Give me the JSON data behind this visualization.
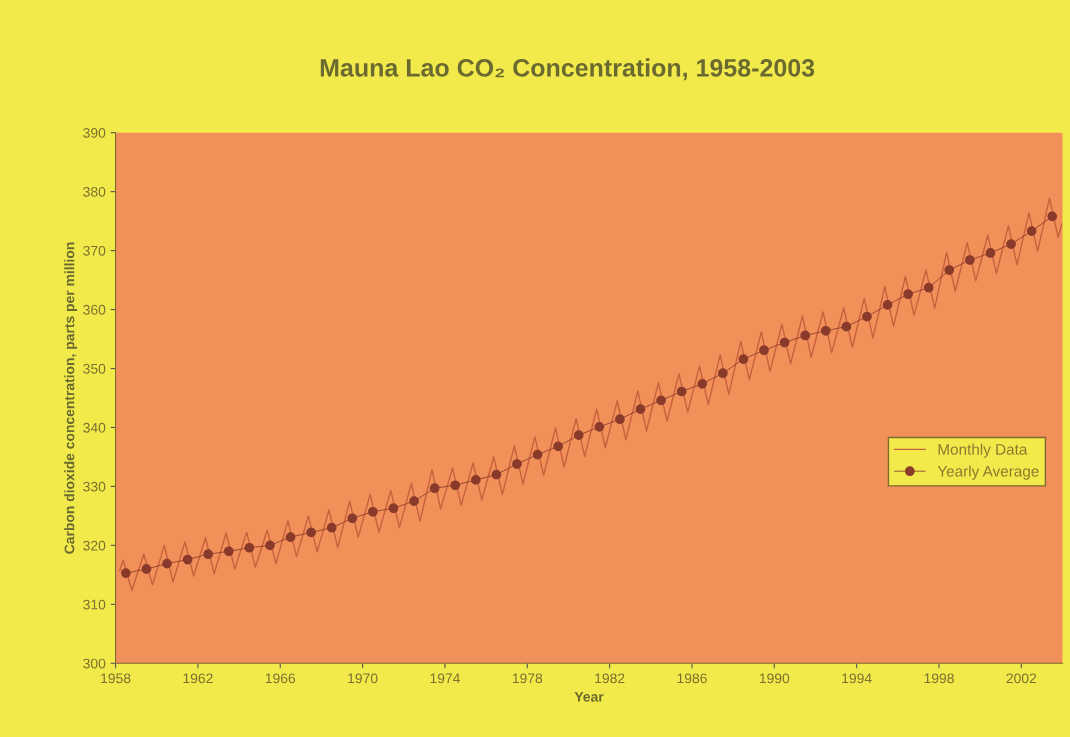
{
  "chart_data": {
    "type": "line",
    "title": "Mauna Lao CO₂ Concentration, 1958-2003",
    "xlabel": "Year",
    "ylabel": "Carbon dioxide concentration, parts per million",
    "xlim": [
      1958,
      2004
    ],
    "xticks": [
      1958,
      1962,
      1966,
      1970,
      1974,
      1978,
      1982,
      1986,
      1990,
      1994,
      1998,
      2002
    ],
    "ylim": [
      300,
      390
    ],
    "yticks": [
      300,
      310,
      320,
      330,
      340,
      350,
      360,
      370,
      380,
      390
    ],
    "grid": false,
    "legend": "right",
    "series": [
      {
        "name": "Monthly Data",
        "color": "#c8603c",
        "marker": "none",
        "line_style": "solid",
        "x": [
          1958.2,
          1958.37,
          1958.79,
          1959.37,
          1959.79,
          1960.37,
          1960.79,
          1961.37,
          1961.79,
          1962.37,
          1962.79,
          1963.37,
          1963.79,
          1964.37,
          1964.79,
          1965.37,
          1965.79,
          1966.37,
          1966.79,
          1967.37,
          1967.79,
          1968.37,
          1968.79,
          1969.37,
          1969.79,
          1970.37,
          1970.79,
          1971.37,
          1971.79,
          1972.37,
          1972.79,
          1973.37,
          1973.79,
          1974.37,
          1974.79,
          1975.37,
          1975.79,
          1976.37,
          1976.79,
          1977.37,
          1977.79,
          1978.37,
          1978.79,
          1979.37,
          1979.79,
          1980.37,
          1980.79,
          1981.37,
          1981.79,
          1982.37,
          1982.79,
          1983.37,
          1983.79,
          1984.37,
          1984.79,
          1985.37,
          1985.79,
          1986.37,
          1986.79,
          1987.37,
          1987.79,
          1988.37,
          1988.79,
          1989.37,
          1989.79,
          1990.37,
          1990.79,
          1991.37,
          1991.79,
          1992.37,
          1992.79,
          1993.37,
          1993.79,
          1994.37,
          1994.79,
          1995.37,
          1995.79,
          1996.37,
          1996.79,
          1997.37,
          1997.79,
          1998.37,
          1998.79,
          1999.37,
          1999.79,
          2000.37,
          2000.79,
          2001.37,
          2001.79,
          2002.37,
          2002.79,
          2003.37,
          2003.79,
          2003.96
        ],
        "values": [
          315.7,
          317.5,
          312.4,
          318.5,
          313.3,
          320.0,
          313.8,
          320.6,
          314.8,
          321.3,
          315.2,
          322.1,
          316.0,
          322.2,
          316.3,
          322.6,
          316.9,
          324.2,
          318.1,
          325.0,
          318.9,
          326.0,
          319.6,
          327.5,
          321.4,
          328.7,
          322.2,
          329.3,
          323.0,
          330.5,
          324.1,
          332.8,
          326.2,
          333.1,
          326.8,
          334.0,
          327.7,
          335.0,
          328.6,
          336.9,
          330.4,
          338.4,
          331.9,
          339.9,
          333.3,
          341.5,
          335.1,
          343.1,
          336.6,
          344.5,
          337.9,
          346.2,
          339.4,
          347.6,
          341.1,
          349.1,
          342.6,
          350.4,
          343.9,
          352.3,
          345.6,
          354.6,
          348.1,
          356.2,
          349.5,
          357.5,
          350.8,
          358.9,
          351.9,
          359.6,
          352.7,
          360.3,
          353.6,
          361.9,
          355.2,
          363.9,
          357.2,
          365.6,
          359.0,
          366.7,
          360.2,
          369.7,
          363.1,
          371.3,
          364.9,
          372.6,
          366.1,
          374.2,
          367.6,
          376.4,
          369.9,
          378.9,
          372.2,
          374.5
        ]
      },
      {
        "name": "Yearly Average",
        "color": "#8a3a2a",
        "marker": "circle",
        "line_style": "solid",
        "x": [
          1958.5,
          1959.5,
          1960.5,
          1961.5,
          1962.5,
          1963.5,
          1964.5,
          1965.5,
          1966.5,
          1967.5,
          1968.5,
          1969.5,
          1970.5,
          1971.5,
          1972.5,
          1973.5,
          1974.5,
          1975.5,
          1976.5,
          1977.5,
          1978.5,
          1979.5,
          1980.5,
          1981.5,
          1982.5,
          1983.5,
          1984.5,
          1985.5,
          1986.5,
          1987.5,
          1988.5,
          1989.5,
          1990.5,
          1991.5,
          1992.5,
          1993.5,
          1994.5,
          1995.5,
          1996.5,
          1997.5,
          1998.5,
          1999.5,
          2000.5,
          2001.5,
          2002.5,
          2003.5
        ],
        "values": [
          315.3,
          316.0,
          316.9,
          317.6,
          318.5,
          319.0,
          319.6,
          320.0,
          321.4,
          322.2,
          323.0,
          324.6,
          325.7,
          326.3,
          327.5,
          329.7,
          330.2,
          331.1,
          332.0,
          333.8,
          335.4,
          336.8,
          338.7,
          340.1,
          341.4,
          343.1,
          344.6,
          346.1,
          347.4,
          349.2,
          351.6,
          353.1,
          354.4,
          355.6,
          356.4,
          357.1,
          358.8,
          360.8,
          362.6,
          363.7,
          366.7,
          368.4,
          369.6,
          371.1,
          373.3,
          375.8
        ]
      }
    ]
  }
}
